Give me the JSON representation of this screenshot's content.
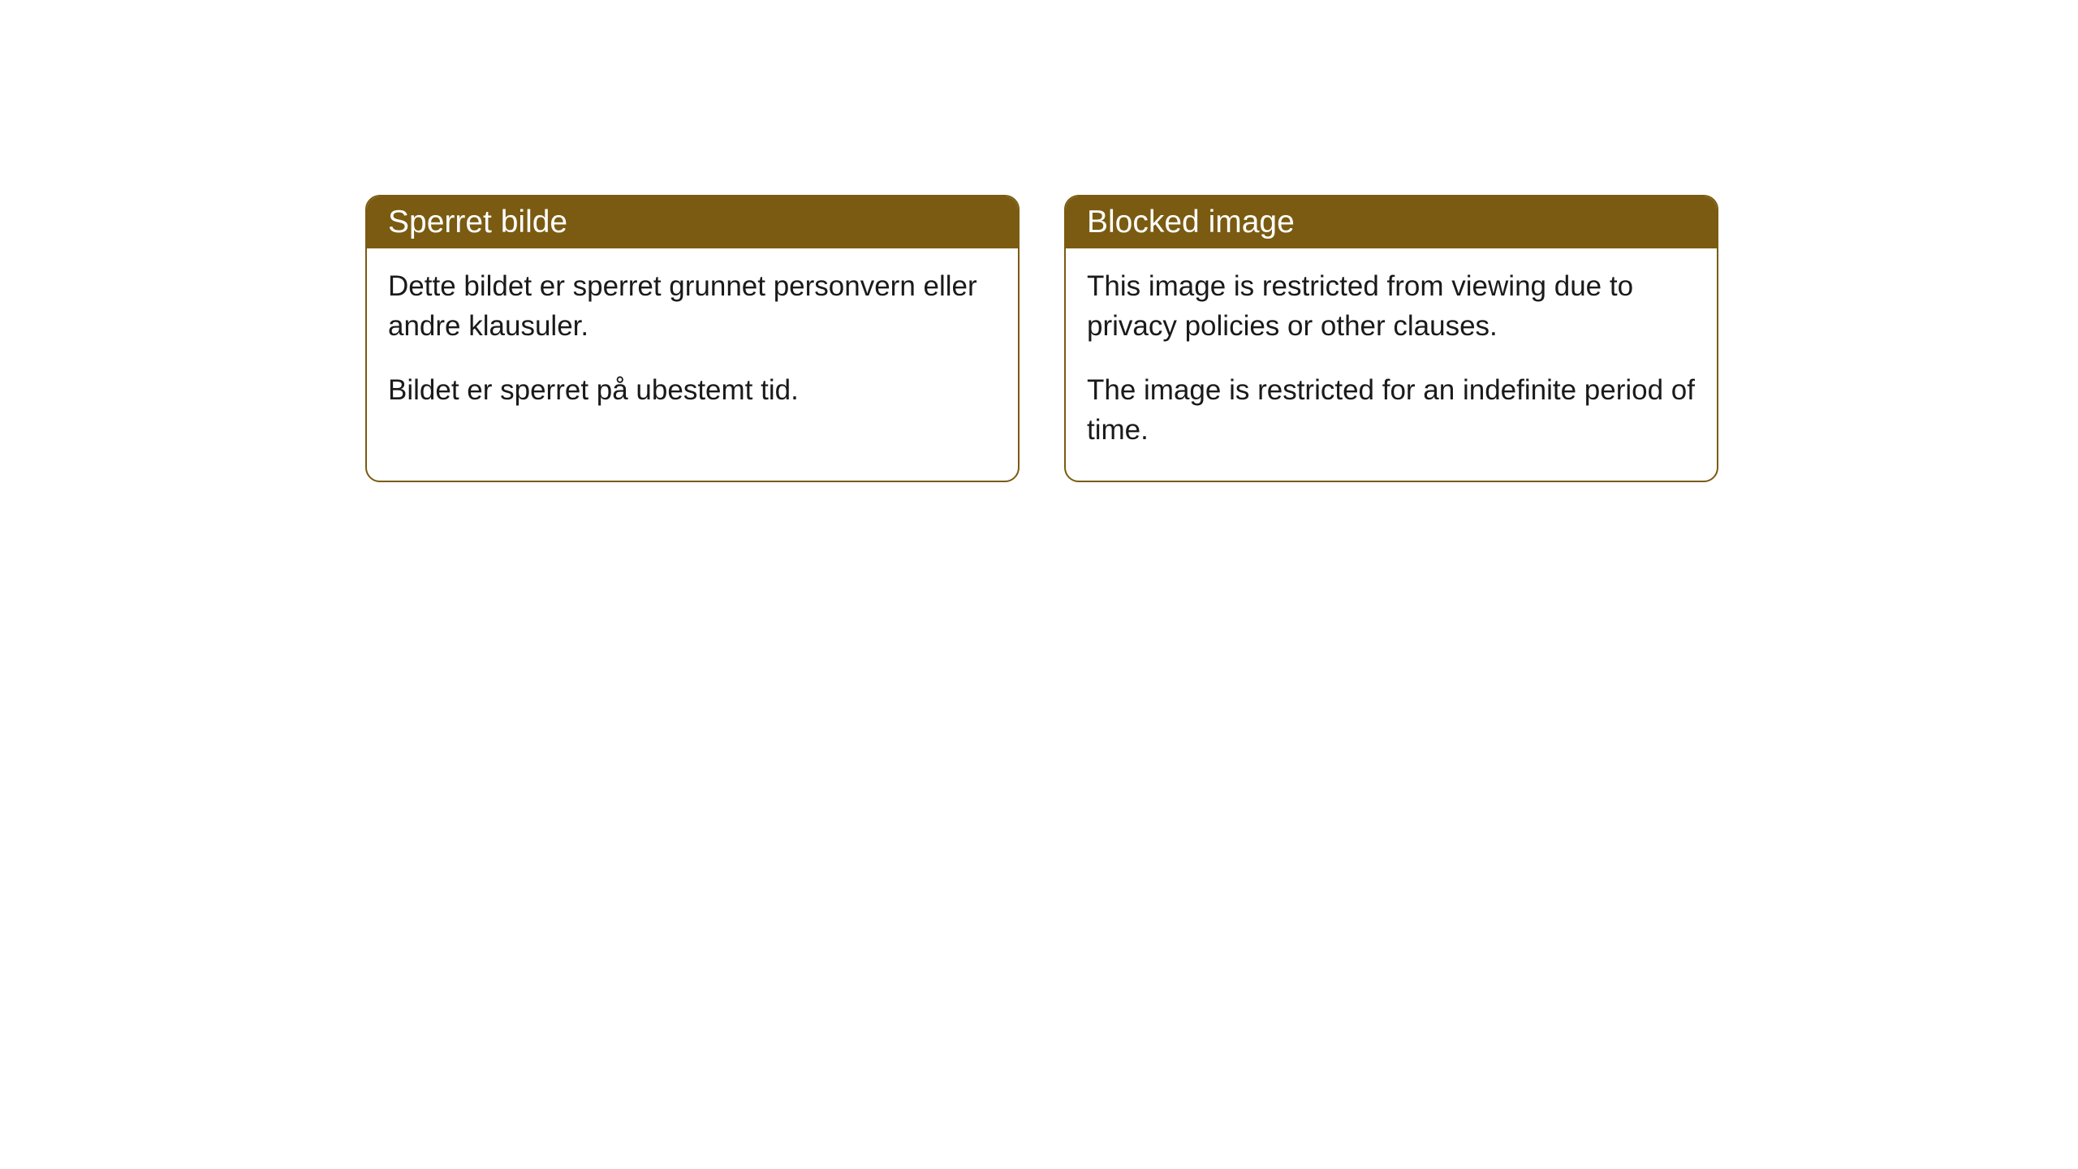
{
  "cards": [
    {
      "title": "Sperret bilde",
      "paragraph1": "Dette bildet er sperret grunnet personvern eller andre klausuler.",
      "paragraph2": "Bildet er sperret på ubestemt tid."
    },
    {
      "title": "Blocked image",
      "paragraph1": "This image is restricted from viewing due to privacy policies or other clauses.",
      "paragraph2": "The image is restricted for an indefinite period of time."
    }
  ],
  "style": {
    "header_bg": "#7a5b11",
    "header_text_color": "#ffffff",
    "border_color": "#7a5b11",
    "body_bg": "#ffffff",
    "body_text_color": "#1a1a1a",
    "border_radius": 18,
    "header_fontsize": 39,
    "body_fontsize": 35
  }
}
